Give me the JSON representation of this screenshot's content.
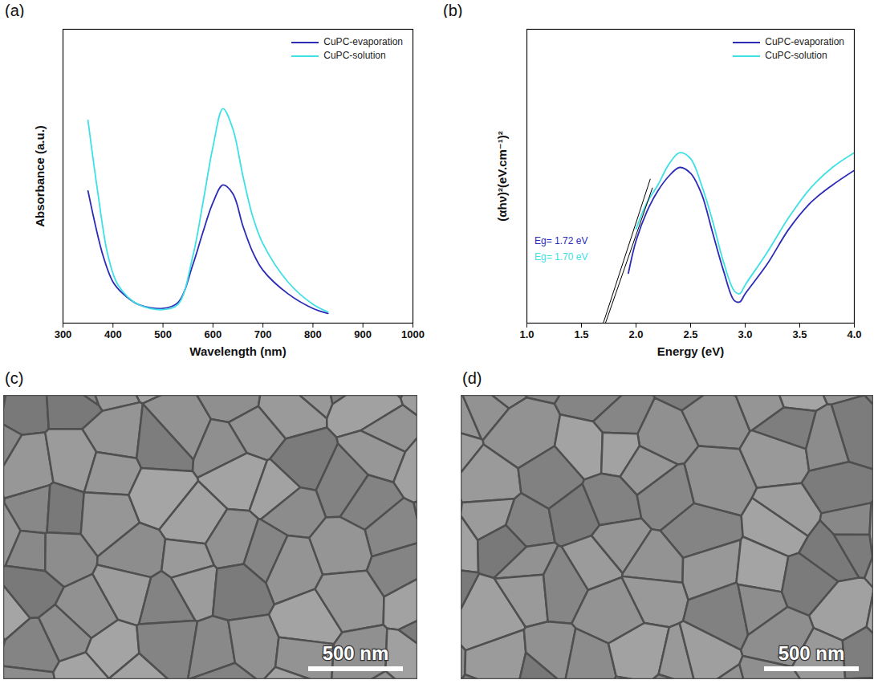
{
  "chart_data": [
    {
      "type": "line",
      "panel_label": "(a)",
      "x_label": "Wavelength (nm)",
      "y_label": "Absorbance (a.u.)",
      "xlim": [
        300,
        1000
      ],
      "xticks": [
        300,
        400,
        500,
        600,
        700,
        800,
        900,
        1000
      ],
      "ylim": [
        0,
        1
      ],
      "tick_labels": "x",
      "legend": "upper right",
      "series": [
        {
          "name": "CuPC-evaporation",
          "color": "#2b2bb8",
          "x": [
            350,
            380,
            400,
            420,
            450,
            500,
            530,
            560,
            580,
            600,
            620,
            640,
            660,
            680,
            700,
            750,
            800,
            830
          ],
          "values": [
            0.45,
            0.23,
            0.14,
            0.1,
            0.064,
            0.05,
            0.07,
            0.2,
            0.31,
            0.41,
            0.47,
            0.44,
            0.33,
            0.24,
            0.18,
            0.1,
            0.05,
            0.033
          ]
        },
        {
          "name": "CuPC-solution",
          "color": "#3ee0e6",
          "x": [
            350,
            370,
            390,
            410,
            450,
            500,
            530,
            560,
            580,
            600,
            620,
            640,
            660,
            680,
            700,
            750,
            800,
            830
          ],
          "values": [
            0.69,
            0.44,
            0.23,
            0.13,
            0.064,
            0.046,
            0.064,
            0.23,
            0.41,
            0.6,
            0.73,
            0.66,
            0.5,
            0.36,
            0.27,
            0.14,
            0.064,
            0.038
          ]
        }
      ]
    },
    {
      "type": "line",
      "panel_label": "(b)",
      "x_label": "Energy (eV)",
      "y_label": "(αhν)²(eV.cm⁻¹)²",
      "xlim": [
        1.0,
        4.0
      ],
      "xticks": [
        {
          "value": 1.0,
          "label": "1.0"
        },
        {
          "value": 1.5,
          "label": "1.5"
        },
        {
          "value": 2.0,
          "label": "2.0"
        },
        {
          "value": 2.5,
          "label": "2.5"
        },
        {
          "value": 3.0,
          "label": "3.0"
        },
        {
          "value": 3.5,
          "label": "3.5"
        },
        {
          "value": 4.0,
          "label": "4.0"
        }
      ],
      "ylim": [
        0,
        1
      ],
      "tick_labels": "x",
      "legend": "upper right",
      "series": [
        {
          "name": "CuPC-evaporation",
          "color": "#2b2bb8",
          "x": [
            1.93,
            2.0,
            2.1,
            2.2,
            2.3,
            2.4,
            2.5,
            2.6,
            2.7,
            2.8,
            2.9,
            2.95,
            3.0,
            3.2,
            3.4,
            3.6,
            3.8,
            4.0
          ],
          "values": [
            0.17,
            0.28,
            0.38,
            0.45,
            0.5,
            0.53,
            0.51,
            0.44,
            0.31,
            0.18,
            0.077,
            0.072,
            0.1,
            0.2,
            0.32,
            0.41,
            0.47,
            0.52
          ]
        },
        {
          "name": "CuPC-solution",
          "color": "#3ee0e6",
          "x": [
            2.0,
            2.1,
            2.2,
            2.3,
            2.4,
            2.5,
            2.6,
            2.7,
            2.8,
            2.9,
            2.95,
            3.0,
            3.2,
            3.4,
            3.6,
            3.8,
            4.0
          ],
          "values": [
            0.32,
            0.41,
            0.47,
            0.54,
            0.58,
            0.56,
            0.47,
            0.35,
            0.21,
            0.11,
            0.1,
            0.13,
            0.24,
            0.36,
            0.46,
            0.53,
            0.58
          ]
        }
      ],
      "tangents": [
        {
          "color": "#000000",
          "x": [
            1.72,
            2.15
          ],
          "y": [
            0,
            0.46
          ]
        },
        {
          "color": "#000000",
          "x": [
            1.7,
            2.13
          ],
          "y": [
            0,
            0.49
          ]
        }
      ],
      "annotations": [
        {
          "text": "Eg= 1.72 eV",
          "x": 1.07,
          "y": 0.28,
          "color": "#2b2bb8"
        },
        {
          "text": "Eg= 1.70 eV",
          "x": 1.07,
          "y": 0.225,
          "color": "#3ee0e6"
        }
      ]
    }
  ],
  "images": [
    {
      "panel_label": "(c)",
      "scale_bar": "500 nm"
    },
    {
      "panel_label": "(d)",
      "scale_bar": "500 nm"
    }
  ]
}
